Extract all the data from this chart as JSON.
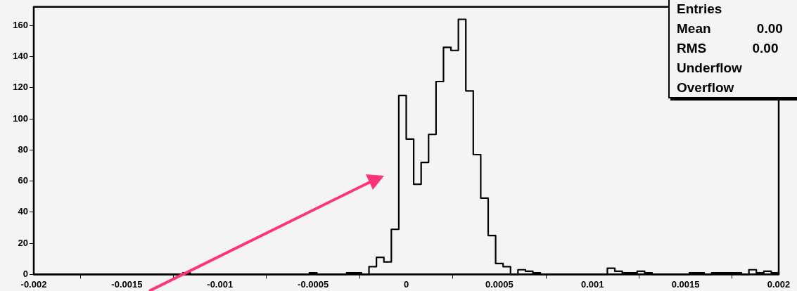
{
  "chart_data": {
    "type": "histogram",
    "bins": [
      -0.002,
      -0.00196,
      -0.00192,
      -0.00188,
      -0.00184,
      -0.0018,
      -0.00176,
      -0.00172,
      -0.00168,
      -0.00164,
      -0.0016,
      -0.00156,
      -0.00152,
      -0.00148,
      -0.00144,
      -0.0014,
      -0.00136,
      -0.00132,
      -0.00128,
      -0.00124,
      -0.0012,
      -0.00116,
      -0.00112,
      -0.00108,
      -0.00104,
      -0.001,
      -0.00096,
      -0.00092,
      -0.00088,
      -0.00084,
      -0.0008,
      -0.00076,
      -0.00072,
      -0.00068,
      -0.00064,
      -0.0006,
      -0.00056,
      -0.00052,
      -0.00048,
      -0.00044,
      -0.0004,
      -0.00036,
      -0.00032,
      -0.00028,
      -0.00024,
      -0.0002,
      -0.00016,
      -0.00012,
      -8e-05,
      -4e-05,
      0,
      4e-05,
      8e-05,
      0.00012,
      0.00016,
      0.0002,
      0.00024,
      0.00028,
      0.00032,
      0.00036,
      0.0004,
      0.00044,
      0.00048,
      0.00052,
      0.00056,
      0.0006,
      0.00064,
      0.00068,
      0.00072,
      0.00076,
      0.0008,
      0.00084,
      0.00088,
      0.00092,
      0.00096,
      0.001,
      0.00104,
      0.00108,
      0.00112,
      0.00116,
      0.0012,
      0.00124,
      0.00128,
      0.00132,
      0.00136,
      0.0014,
      0.00144,
      0.00148,
      0.00152,
      0.00156,
      0.0016,
      0.00164,
      0.00168,
      0.00172,
      0.00176,
      0.0018,
      0.00184,
      0.00188,
      0.00192,
      0.00196,
      0.002
    ],
    "values": [
      0,
      0,
      0,
      0,
      0,
      0,
      0,
      0,
      0,
      0,
      0,
      0,
      0,
      0,
      0,
      0,
      0,
      0,
      0,
      0,
      1,
      0,
      0,
      0,
      0,
      0,
      0,
      0,
      0,
      0,
      0,
      0,
      0,
      0,
      0,
      0,
      0,
      1,
      0,
      0,
      0,
      0,
      1,
      1,
      0,
      5,
      11,
      8,
      29,
      115,
      87,
      58,
      72,
      90,
      124,
      146,
      144,
      164,
      118,
      77,
      49,
      25,
      7,
      5,
      0,
      3,
      2,
      1,
      0,
      0,
      0,
      0,
      0,
      0,
      0,
      0,
      0,
      4,
      2,
      1,
      1,
      2,
      1,
      0,
      0,
      0,
      0,
      0,
      1,
      1,
      0,
      1,
      1,
      1,
      1,
      0,
      3,
      1,
      2,
      1
    ],
    "color": "#000000",
    "xlim": [
      -0.002,
      0.002
    ],
    "xticks": [
      -0.002,
      -0.0015,
      -0.001,
      -0.0005,
      0,
      0.0005,
      0.001,
      0.0015,
      0.002
    ],
    "ylim": [
      0,
      172
    ],
    "yticks": [
      0,
      20,
      40,
      60,
      80,
      100,
      120,
      140,
      160
    ],
    "grid": false,
    "legend": false,
    "annotations": [
      "Entries",
      "Mean 0.00",
      "RMS 0.00",
      "Underflow",
      "Overflow"
    ]
  }
}
